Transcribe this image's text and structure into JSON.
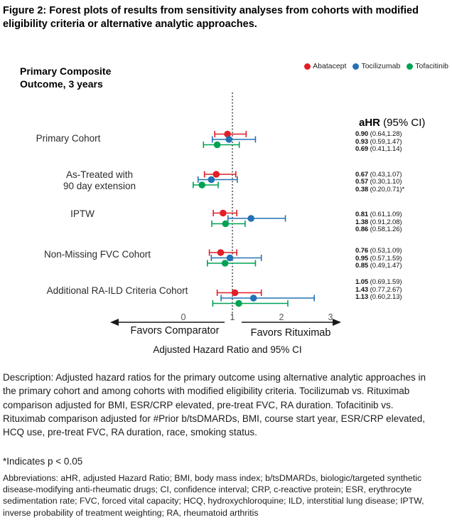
{
  "figure": {
    "title": "Figure 2: Forest plots of results from sensitivity analyses from cohorts with modified eligibility criteria or alternative analytic approaches."
  },
  "legend": {
    "items": [
      {
        "label": "Abatacept",
        "color": "#e21e26"
      },
      {
        "label": "Tocilizumab",
        "color": "#2272b5"
      },
      {
        "label": "Tofacitinib",
        "color": "#00a254"
      }
    ]
  },
  "chart_data": {
    "type": "forest",
    "outcome_label": "Primary Composite\nOutcome, 3 years",
    "column_header_bold": "aHR",
    "column_header_rest": " (95% CI)",
    "series": [
      "Abatacept",
      "Tocilizumab",
      "Tofacitinib"
    ],
    "x_ticks": [
      "0",
      "1",
      "2",
      "3"
    ],
    "xlim": [
      0,
      3
    ],
    "reference_line": 1,
    "reference_line_style": "dotted",
    "favors_left": "Favors Comparator",
    "favors_right": "Favors Rituximab",
    "axis_caption": "Adjusted Hazard Ratio and 95% CI",
    "groups": [
      {
        "label": "Primary Cohort",
        "estimates": [
          {
            "series": "Abatacept",
            "hr": 0.9,
            "lo": 0.64,
            "hi": 1.28,
            "hr_label": "0.90",
            "ci_label": "(0.64,1.28)"
          },
          {
            "series": "Tocilizumab",
            "hr": 0.93,
            "lo": 0.59,
            "hi": 1.47,
            "hr_label": "0.93",
            "ci_label": "(0.59,1.47)"
          },
          {
            "series": "Tofacitinib",
            "hr": 0.69,
            "lo": 0.41,
            "hi": 1.14,
            "hr_label": "0.69",
            "ci_label": "(0.41,1.14)"
          }
        ]
      },
      {
        "label": "As-Treated with\n90 day extension",
        "estimates": [
          {
            "series": "Abatacept",
            "hr": 0.67,
            "lo": 0.43,
            "hi": 1.07,
            "hr_label": "0.67",
            "ci_label": "(0.43,1.07)"
          },
          {
            "series": "Tocilizumab",
            "hr": 0.57,
            "lo": 0.3,
            "hi": 1.1,
            "hr_label": "0.57",
            "ci_label": "(0.30,1.10)"
          },
          {
            "series": "Tofacitinib",
            "hr": 0.38,
            "lo": 0.2,
            "hi": 0.71,
            "hr_label": "0.38",
            "ci_label": "(0.20,0.71)*"
          }
        ]
      },
      {
        "label": "IPTW",
        "estimates": [
          {
            "series": "Abatacept",
            "hr": 0.81,
            "lo": 0.61,
            "hi": 1.09,
            "hr_label": "0.81",
            "ci_label": "(0.61,1.09)"
          },
          {
            "series": "Tocilizumab",
            "hr": 1.38,
            "lo": 0.91,
            "hi": 2.08,
            "hr_label": "1.38",
            "ci_label": "(0.91,2.08)"
          },
          {
            "series": "Tofacitinib",
            "hr": 0.86,
            "lo": 0.58,
            "hi": 1.26,
            "hr_label": "0.86",
            "ci_label": "(0.58,1.26)"
          }
        ]
      },
      {
        "label": "Non-Missing FVC Cohort",
        "estimates": [
          {
            "series": "Abatacept",
            "hr": 0.76,
            "lo": 0.53,
            "hi": 1.09,
            "hr_label": "0.76",
            "ci_label": "(0.53,1.09)"
          },
          {
            "series": "Tocilizumab",
            "hr": 0.95,
            "lo": 0.57,
            "hi": 1.59,
            "hr_label": "0.95",
            "ci_label": "(0.57,1.59)"
          },
          {
            "series": "Tofacitinib",
            "hr": 0.85,
            "lo": 0.49,
            "hi": 1.47,
            "hr_label": "0.85",
            "ci_label": "(0.49,1.47)"
          }
        ]
      },
      {
        "label": "Additional RA-ILD Criteria Cohort",
        "estimates": [
          {
            "series": "Abatacept",
            "hr": 1.05,
            "lo": 0.69,
            "hi": 1.59,
            "hr_label": "1.05",
            "ci_label": "(0.69,1.59)"
          },
          {
            "series": "Tocilizumab",
            "hr": 1.43,
            "lo": 0.77,
            "hi": 2.67,
            "hr_label": "1.43",
            "ci_label": "(0.77,2.67)"
          },
          {
            "series": "Tofacitinib",
            "hr": 1.13,
            "lo": 0.6,
            "hi": 2.13,
            "hr_label": "1.13",
            "ci_label": "(0.60,2.13)"
          }
        ]
      }
    ]
  },
  "notes": {
    "description": "Description: Adjusted hazard ratios for the primary outcome using alternative analytic approaches in the primary cohort and among cohorts with modified eligibility criteria. Tocilizumab vs. Rituximab comparison adjusted for BMI, ESR/CRP elevated, pre-treat FVC, RA duration. Tofacitinib vs. Rituximab comparison adjusted for #Prior b/tsDMARDs, BMI, course start year, ESR/CRP elevated, HCQ use, pre-treat FVC, RA duration, race, smoking status.",
    "significance": "*Indicates p < 0.05",
    "abbreviations": "Abbreviations: aHR, adjusted Hazard Ratio; BMI, body mass index; b/tsDMARDs, biologic/targeted synthetic disease-modifying anti-rheumatic drugs; CI, confidence interval; CRP, c-reactive protein; ESR, erythrocyte sedimentation rate; FVC, forced vital capacity; HCQ, hydroxychloroquine; ILD, interstitial lung disease; IPTW, inverse probability of treatment weighting; RA, rheumatoid arthritis"
  }
}
